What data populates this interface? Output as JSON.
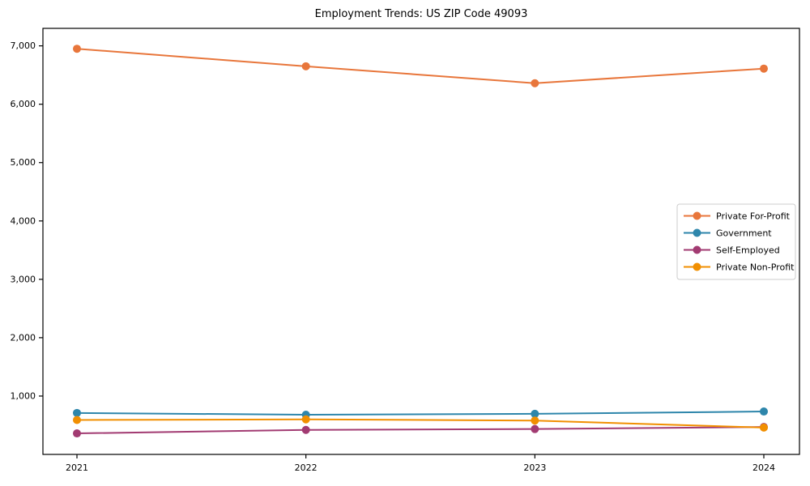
{
  "chart_data": {
    "type": "line",
    "title": "Employment Trends: US ZIP Code 49093",
    "xlabel": "",
    "ylabel": "",
    "grid": false,
    "legend_position": "center right",
    "x": [
      "2021",
      "2022",
      "2023",
      "2024"
    ],
    "series": [
      {
        "name": "Private For-Profit",
        "color": "#e8763b",
        "values": [
          6950,
          6650,
          6360,
          6610
        ]
      },
      {
        "name": "Government",
        "color": "#2e86ab",
        "values": [
          710,
          680,
          695,
          735
        ]
      },
      {
        "name": "Self-Employed",
        "color": "#a23b72",
        "values": [
          360,
          420,
          435,
          470
        ]
      },
      {
        "name": "Private Non-Profit",
        "color": "#f18f01",
        "values": [
          590,
          600,
          580,
          460
        ]
      }
    ],
    "ylim": [
      0,
      7300
    ],
    "yticks": [
      {
        "value": 1000,
        "label": "1,000"
      },
      {
        "value": 2000,
        "label": "2,000"
      },
      {
        "value": 3000,
        "label": "3,000"
      },
      {
        "value": 4000,
        "label": "4,000"
      },
      {
        "value": 5000,
        "label": "5,000"
      },
      {
        "value": 6000,
        "label": "6,000"
      },
      {
        "value": 7000,
        "label": "7,000"
      }
    ],
    "marker": "circle",
    "frame_color": "#000000",
    "legend_border_color": "#cccccc"
  }
}
